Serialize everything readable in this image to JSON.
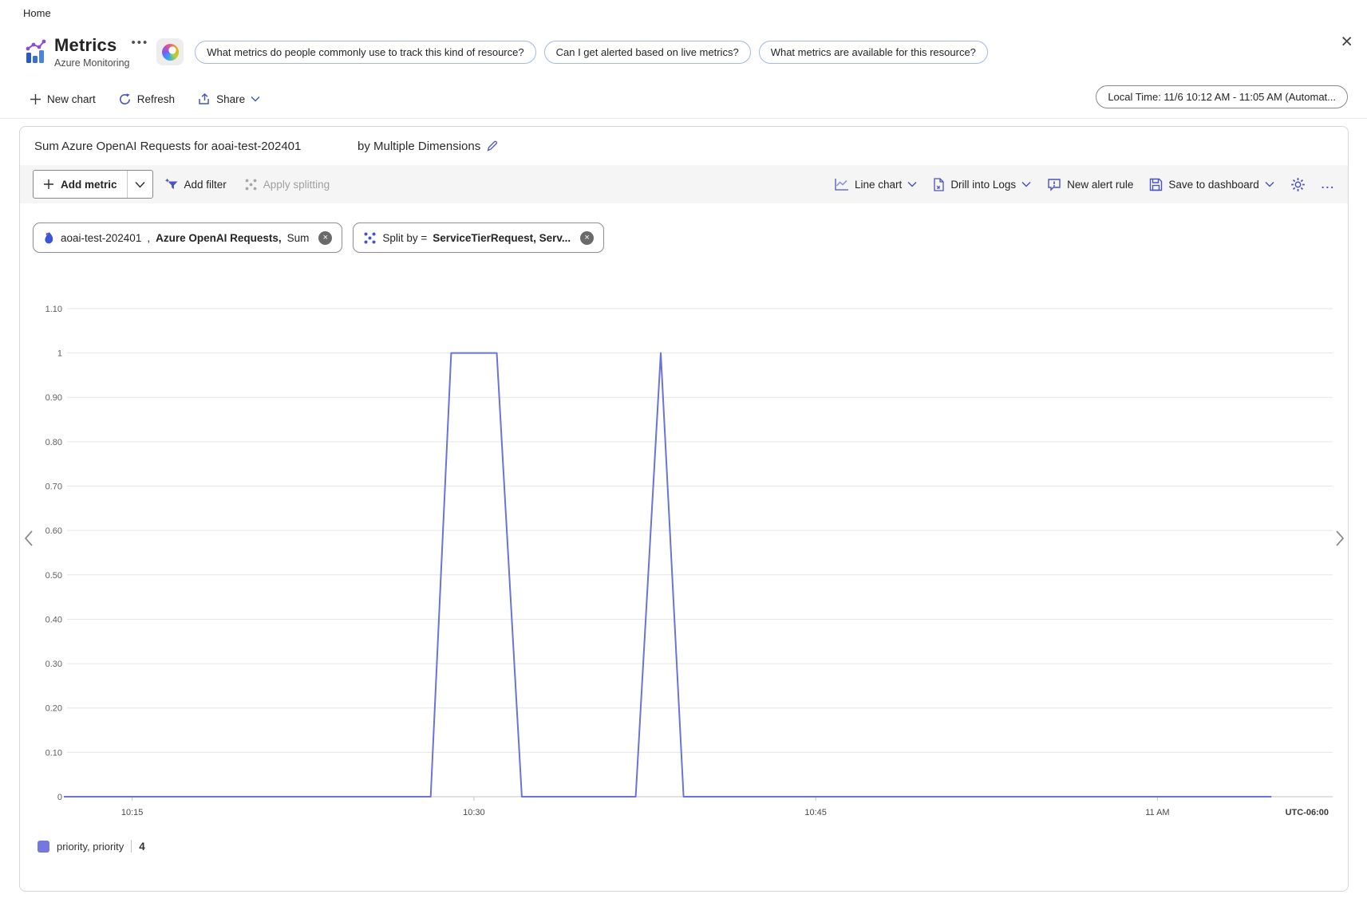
{
  "breadcrumb": {
    "home": "Home"
  },
  "header": {
    "title": "Metrics",
    "subtitle": "Azure Monitoring",
    "chips": [
      {
        "label": "What metrics do people commonly use to track this kind of resource?"
      },
      {
        "label": "Can I get alerted based on live metrics?"
      },
      {
        "label": "What metrics are available for this resource?"
      }
    ]
  },
  "command_bar": {
    "new_chart": "New chart",
    "refresh": "Refresh",
    "share": "Share",
    "time_range": "Local Time: 11/6 10:12 AM - 11:05 AM (Automat..."
  },
  "chart_header": {
    "title": "Sum Azure OpenAI Requests for aoai-test-202401",
    "split_label": "by Multiple Dimensions"
  },
  "chart_toolbar": {
    "add_metric": "Add metric",
    "add_filter": "Add filter",
    "apply_splitting": "Apply splitting",
    "chart_type": "Line chart",
    "drill_into_logs": "Drill into Logs",
    "new_alert_rule": "New alert rule",
    "save_to_dashboard": "Save to dashboard",
    "more": "..."
  },
  "metric_pills": {
    "metric": {
      "resource": "aoai-test-202401",
      "separator": " , ",
      "metric_name": "Azure OpenAI Requests,",
      "aggregation": "Sum"
    },
    "split": {
      "prefix": "Split by = ",
      "value": "ServiceTierRequest, Serv..."
    }
  },
  "chart_data": {
    "type": "line",
    "title": "Sum Azure OpenAI Requests for aoai-test-202401",
    "split": "by Multiple Dimensions",
    "ylim": [
      0,
      1.1
    ],
    "ytick_step": 0.1,
    "ytick_labels": [
      "0",
      "0.10",
      "0.20",
      "0.30",
      "0.40",
      "0.50",
      "0.60",
      "0.70",
      "0.80",
      "0.90",
      "1",
      "1.10"
    ],
    "x_start": "10:12 AM",
    "x_end": "11:05 AM",
    "x_total_minutes": 53,
    "xticks": [
      {
        "label": "10:15",
        "min": 3
      },
      {
        "label": "10:30",
        "min": 18
      },
      {
        "label": "10:45",
        "min": 33
      },
      {
        "label": "11 AM",
        "min": 48
      }
    ],
    "timezone_label": "UTC-06:00",
    "grid": true,
    "legend_position": "bottom-left",
    "series": [
      {
        "name": "priority, priority",
        "count": "4",
        "color": "#6b72d8",
        "points_min_value": [
          [
            0,
            0
          ],
          [
            16.1,
            0
          ],
          [
            17,
            1
          ],
          [
            19,
            1
          ],
          [
            20.1,
            0
          ],
          [
            25.1,
            0
          ],
          [
            26.2,
            1
          ],
          [
            27.2,
            0
          ],
          [
            53,
            0
          ]
        ]
      }
    ]
  },
  "legend": {
    "series_label": "priority, priority",
    "count": "4",
    "swatch_color": "#7477dc"
  },
  "colors": {
    "accent": "#4b54bc",
    "line": "#6b72d8",
    "chip_border": "#a3b7ef",
    "grid": "#e6e6e6",
    "axis": "#c3c3c3"
  }
}
